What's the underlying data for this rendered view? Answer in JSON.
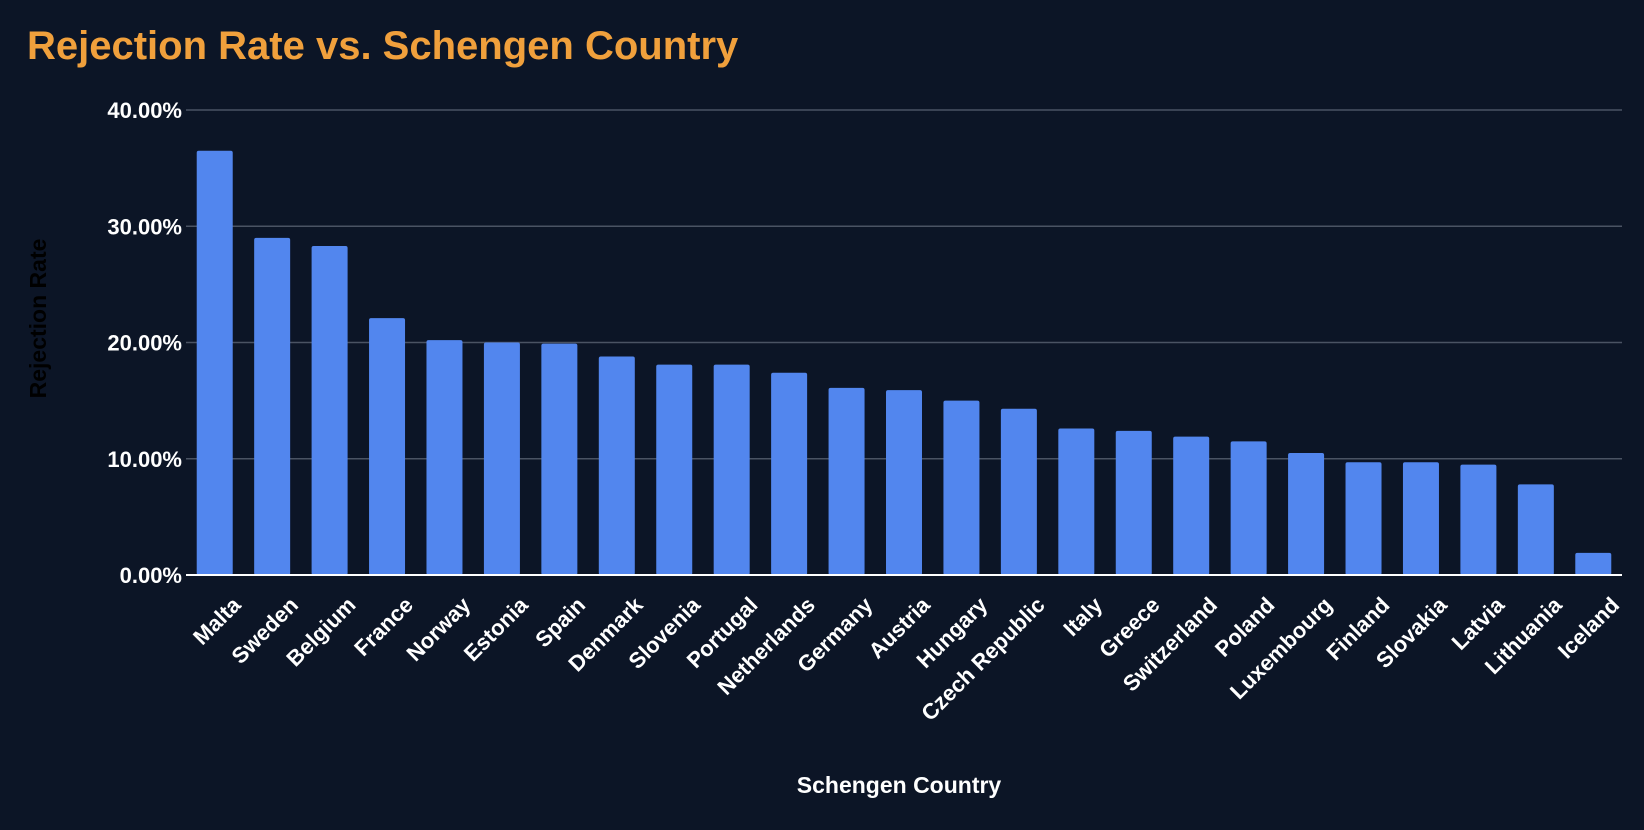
{
  "chart_data": {
    "type": "bar",
    "title": "Rejection Rate vs. Schengen Country",
    "xlabel": "Schengen Country",
    "ylabel": "Rejection Rate",
    "categories": [
      "Malta",
      "Sweden",
      "Belgium",
      "France",
      "Norway",
      "Estonia",
      "Spain",
      "Denmark",
      "Slovenia",
      "Portugal",
      "Netherlands",
      "Germany",
      "Austria",
      "Hungary",
      "Czech Republic",
      "Italy",
      "Greece",
      "Switzerland",
      "Poland",
      "Luxembourg",
      "Finland",
      "Slovakia",
      "Latvia",
      "Lithuania",
      "Iceland"
    ],
    "values": [
      36.5,
      29.0,
      28.3,
      22.1,
      20.2,
      20.0,
      19.9,
      18.8,
      18.1,
      18.1,
      17.4,
      16.1,
      15.9,
      15.0,
      14.3,
      12.6,
      12.4,
      11.9,
      11.5,
      10.5,
      9.7,
      9.7,
      9.5,
      7.8,
      1.9
    ],
    "ylim": [
      0,
      40
    ],
    "yticks": [
      "0.00%",
      "10.00%",
      "20.00%",
      "30.00%",
      "40.00%"
    ],
    "grid": true,
    "legend": "none",
    "colors": {
      "background": "#0c1526",
      "bar": "#5286ee",
      "title": "#f0a03c",
      "text": "#ffffff",
      "ylabel": "#000000",
      "gridline": "#4a5363",
      "baseline": "#ffffff"
    }
  }
}
